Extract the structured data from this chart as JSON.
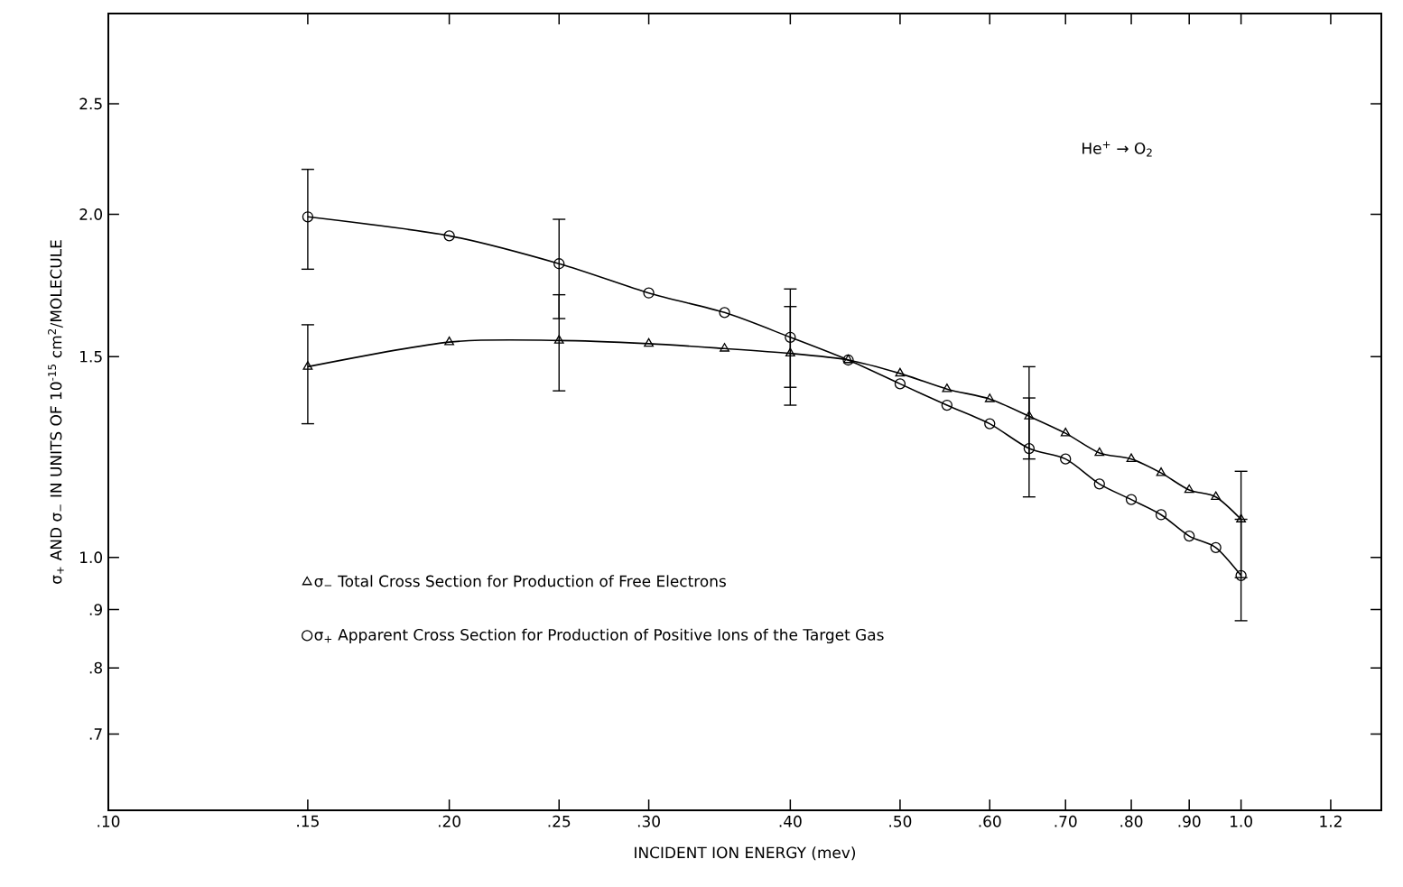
{
  "chart_data": {
    "type": "line",
    "xlabel": "INCIDENT ION ENERGY (mev)",
    "ylabel": "σ$_{+}$ AND σ$_{−}$ IN UNITS OF 10$^{-15}$ cm$^{2}$/MOLECULE",
    "annotations": [
      "He$^{+}$ → O$_{2}$"
    ],
    "log": "xy",
    "legend": "bottom left",
    "x": [
      0.15,
      0.2,
      0.25,
      0.3,
      0.35,
      0.4,
      0.45,
      0.5,
      0.55,
      0.6,
      0.65,
      0.7,
      0.75,
      0.8,
      0.85,
      0.9,
      0.95,
      1.0
    ],
    "xlim": [
      0.1,
      1.33
    ],
    "ylim": [
      0.6,
      3.0
    ],
    "xticks": [
      {
        "value": 0.1,
        "label": ".10"
      },
      {
        "value": 0.15,
        "label": ".15"
      },
      {
        "value": 0.2,
        "label": ".20"
      },
      {
        "value": 0.25,
        "label": ".25"
      },
      {
        "value": 0.3,
        "label": ".30"
      },
      {
        "value": 0.4,
        "label": ".40"
      },
      {
        "value": 0.5,
        "label": ".50"
      },
      {
        "value": 0.6,
        "label": ".60"
      },
      {
        "value": 0.7,
        "label": ".70"
      },
      {
        "value": 0.8,
        "label": ".80"
      },
      {
        "value": 0.9,
        "label": ".90"
      },
      {
        "value": 1.0,
        "label": "1.0"
      },
      {
        "value": 1.2,
        "label": "1.2"
      }
    ],
    "yticks": [
      {
        "value": 0.7,
        "label": ".7"
      },
      {
        "value": 0.8,
        "label": ".8"
      },
      {
        "value": 0.9,
        "label": ".9"
      },
      {
        "value": 1.0,
        "label": "1.0"
      },
      {
        "value": 1.5,
        "label": "1.5"
      },
      {
        "value": 2.0,
        "label": "2.0"
      },
      {
        "value": 2.5,
        "label": "2.5"
      }
    ],
    "series": [
      {
        "name": "σ$_{−}$ Total Cross Section for Production of Free Electrons",
        "color": "#000000",
        "marker": "triangle",
        "values": [
          1.47,
          1.545,
          1.55,
          1.54,
          1.525,
          1.51,
          1.49,
          1.45,
          1.405,
          1.377,
          1.33,
          1.285,
          1.235,
          1.22,
          1.186,
          1.146,
          1.13,
          1.08
        ],
        "errors": [
          [
            1.31,
            1.6
          ],
          null,
          [
            1.4,
            1.7
          ],
          null,
          null,
          [
            1.36,
            1.66
          ],
          null,
          null,
          null,
          null,
          [
            1.22,
            1.47
          ],
          null,
          null,
          null,
          null,
          null,
          null,
          [
            0.96,
            1.19
          ]
        ]
      },
      {
        "name": "σ$_{+}$ Apparent Cross Section for Production of Positive Ions of the Target Gas",
        "color": "#000000",
        "marker": "circle",
        "values": [
          1.99,
          1.915,
          1.81,
          1.706,
          1.64,
          1.56,
          1.49,
          1.42,
          1.36,
          1.31,
          1.246,
          1.22,
          1.16,
          1.124,
          1.09,
          1.044,
          1.02,
          0.964
        ],
        "errors": [
          [
            1.79,
            2.19
          ],
          null,
          [
            1.62,
            1.98
          ],
          null,
          null,
          [
            1.41,
            1.72
          ],
          null,
          null,
          null,
          null,
          [
            1.13,
            1.38
          ],
          null,
          null,
          null,
          null,
          null,
          null,
          [
            0.88,
            1.08
          ]
        ]
      }
    ]
  }
}
